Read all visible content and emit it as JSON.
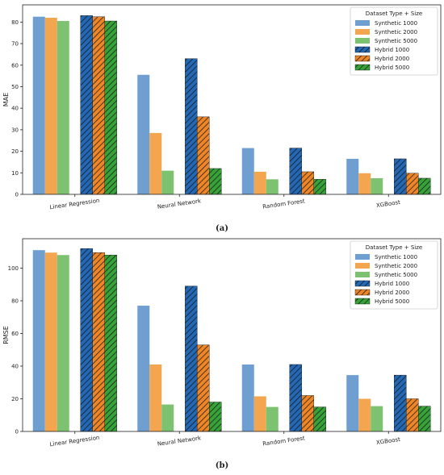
{
  "colors": {
    "Synthetic 1000": "#6f9fd0",
    "Synthetic 2000": "#f3a64f",
    "Synthetic 5000": "#7cc270",
    "Hybrid 1000": "#2468b4",
    "Hybrid 2000": "#ec8628",
    "Hybrid 5000": "#37a23a"
  },
  "legend_title": "Dataset Type + Size",
  "chart_data": [
    {
      "type": "bar",
      "caption": "(a)",
      "ylabel": "MAE",
      "xlabel": "",
      "ylim": [
        0,
        88
      ],
      "yticks": [
        0,
        10,
        20,
        30,
        40,
        50,
        60,
        70,
        80
      ],
      "legend_position": "top-right",
      "categories": [
        "Linear Regression",
        "Neural Network",
        "Random Forest",
        "XGBoost"
      ],
      "series": [
        {
          "name": "Synthetic 1000",
          "hatched": false,
          "values": [
            82.5,
            55.5,
            21.5,
            16.5
          ]
        },
        {
          "name": "Synthetic 2000",
          "hatched": false,
          "values": [
            82.0,
            28.5,
            10.5,
            9.8
          ]
        },
        {
          "name": "Synthetic 5000",
          "hatched": false,
          "values": [
            80.5,
            11.0,
            7.0,
            7.5
          ]
        },
        {
          "name": "Hybrid 1000",
          "hatched": true,
          "values": [
            83.0,
            63.0,
            21.5,
            16.5
          ]
        },
        {
          "name": "Hybrid 2000",
          "hatched": true,
          "values": [
            82.5,
            36.0,
            10.5,
            9.8
          ]
        },
        {
          "name": "Hybrid 5000",
          "hatched": true,
          "values": [
            80.5,
            12.0,
            7.0,
            7.5
          ]
        }
      ]
    },
    {
      "type": "bar",
      "caption": "(b)",
      "ylabel": "RMSE",
      "xlabel": "",
      "ylim": [
        0,
        118
      ],
      "yticks": [
        0,
        20,
        40,
        60,
        80,
        100
      ],
      "legend_position": "top-right",
      "categories": [
        "Linear Regression",
        "Neural Network",
        "Random Forest",
        "XGBoost"
      ],
      "series": [
        {
          "name": "Synthetic 1000",
          "hatched": false,
          "values": [
            111,
            77,
            41,
            34.5
          ]
        },
        {
          "name": "Synthetic 2000",
          "hatched": false,
          "values": [
            109.5,
            41,
            21.5,
            20
          ]
        },
        {
          "name": "Synthetic 5000",
          "hatched": false,
          "values": [
            108,
            16.5,
            15,
            15.5
          ]
        },
        {
          "name": "Hybrid 1000",
          "hatched": true,
          "values": [
            112,
            89,
            41,
            34.5
          ]
        },
        {
          "name": "Hybrid 2000",
          "hatched": true,
          "values": [
            109.5,
            53,
            22,
            20
          ]
        },
        {
          "name": "Hybrid 5000",
          "hatched": true,
          "values": [
            108,
            18,
            15,
            15.5
          ]
        }
      ]
    }
  ]
}
